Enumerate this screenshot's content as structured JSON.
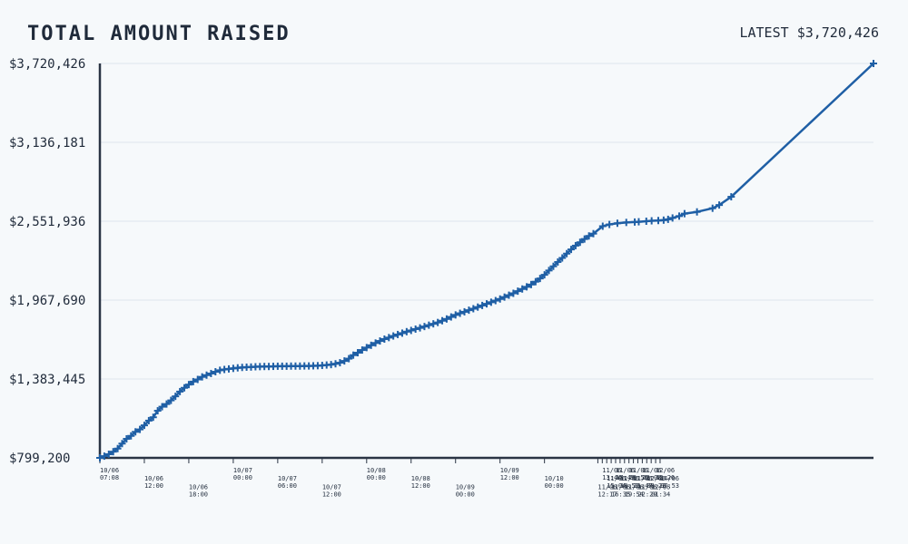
{
  "chart_data": {
    "type": "line",
    "title": "TOTAL AMOUNT RAISED",
    "latest_label": "LATEST",
    "latest_value": "$3,720,426",
    "y_ticks": [
      "$799,200",
      "$1,383,445",
      "$1,967,690",
      "$2,551,936",
      "$3,136,181",
      "$3,720,426"
    ],
    "ylim": [
      799200,
      3720426
    ],
    "grid": true,
    "x_labels": [
      {
        "date": "10/06",
        "time": "07:08",
        "i": 0
      },
      {
        "date": "10/06",
        "time": "12:00",
        "i": 10
      },
      {
        "date": "10/06",
        "time": "18:00",
        "i": 20
      },
      {
        "date": "10/07",
        "time": "00:00",
        "i": 30
      },
      {
        "date": "10/07",
        "time": "06:00",
        "i": 40
      },
      {
        "date": "10/07",
        "time": "12:00",
        "i": 50
      },
      {
        "date": "10/08",
        "time": "00:00",
        "i": 60
      },
      {
        "date": "10/08",
        "time": "12:00",
        "i": 70
      },
      {
        "date": "10/09",
        "time": "00:00",
        "i": 80
      },
      {
        "date": "10/09",
        "time": "12:00",
        "i": 90
      },
      {
        "date": "10/10",
        "time": "00:00",
        "i": 100
      },
      {
        "date": "11/06",
        "time": "12:17",
        "i": 112
      },
      {
        "date": "11/06",
        "time": "13:44",
        "i": 113
      },
      {
        "date": "11/06",
        "time": "15:04",
        "i": 114
      },
      {
        "date": "11/06",
        "time": "16:35",
        "i": 115
      },
      {
        "date": "11/06",
        "time": "17:49",
        "i": 116
      },
      {
        "date": "11/06",
        "time": "18:52",
        "i": 117
      },
      {
        "date": "11/06",
        "time": "19:54",
        "i": 118
      },
      {
        "date": "11/06",
        "time": "20:56",
        "i": 119
      },
      {
        "date": "11/06",
        "time": "21:47",
        "i": 120
      },
      {
        "date": "11/06",
        "time": "22:29",
        "i": 121
      },
      {
        "date": "11/06",
        "time": "23:08",
        "i": 122
      },
      {
        "date": "12/06",
        "time": "00:23",
        "i": 123
      },
      {
        "date": "12/06",
        "time": "01:34",
        "i": 124
      },
      {
        "date": "12/06",
        "time": "12:26",
        "i": 125
      },
      {
        "date": "14/06",
        "time": "07:53",
        "i": 126
      }
    ],
    "point_x": [
      0,
      1,
      2,
      3,
      4,
      5,
      6,
      7,
      8,
      9,
      10,
      11,
      12,
      13,
      14,
      15,
      16,
      17,
      18,
      19,
      20,
      21,
      22,
      23,
      24,
      25,
      26,
      27,
      28,
      29,
      30,
      31,
      32,
      33,
      34,
      35,
      36,
      37,
      38,
      39,
      40,
      41,
      42,
      43,
      44,
      45,
      46,
      47,
      48,
      49,
      50,
      51,
      52,
      53,
      54,
      55,
      56,
      57,
      58,
      59,
      60,
      61,
      62,
      63,
      64,
      65,
      66,
      67,
      68,
      69,
      70,
      71,
      72,
      73,
      74,
      75,
      76,
      77,
      78,
      79,
      80,
      81,
      82,
      83,
      84,
      85,
      86,
      87,
      88,
      89,
      90,
      91,
      92,
      93,
      94,
      95,
      96,
      97,
      98,
      99,
      100,
      101,
      102,
      103,
      104,
      105,
      106,
      107,
      108,
      109,
      110,
      111,
      113.1,
      114.6,
      116.4,
      118.4,
      120.3,
      121.2,
      122.9,
      124.1,
      125.6,
      126.8,
      127.8,
      128.8,
      130.3,
      131.5,
      134.3,
      137.8,
      139.3,
      142.0,
      174.0
    ],
    "point_y": [
      799200,
      812000,
      826000,
      845000,
      868000,
      905000,
      940000,
      962000,
      992000,
      1010000,
      1040000,
      1075000,
      1100000,
      1148000,
      1178000,
      1198000,
      1225000,
      1255000,
      1290000,
      1318000,
      1342000,
      1364000,
      1380000,
      1399000,
      1412000,
      1424000,
      1437000,
      1448000,
      1454000,
      1458000,
      1462000,
      1466000,
      1469000,
      1471000,
      1472000,
      1474000,
      1475000,
      1476000,
      1476000,
      1477000,
      1478000,
      1478000,
      1478000,
      1479000,
      1479000,
      1479000,
      1480000,
      1480000,
      1481000,
      1482000,
      1484000,
      1487000,
      1490000,
      1496000,
      1504000,
      1517000,
      1534000,
      1560000,
      1578000,
      1598000,
      1616000,
      1633000,
      1650000,
      1665000,
      1679000,
      1690000,
      1702000,
      1713000,
      1723000,
      1734000,
      1743000,
      1753000,
      1762000,
      1772000,
      1782000,
      1792000,
      1802000,
      1815000,
      1828000,
      1843000,
      1858000,
      1870000,
      1881000,
      1893000,
      1904000,
      1916000,
      1928000,
      1940000,
      1952000,
      1964000,
      1976000,
      1990000,
      2004000,
      2018000,
      2034000,
      2050000,
      2066000,
      2083000,
      2104000,
      2128000,
      2155000,
      2187000,
      2218000,
      2250000,
      2280000,
      2312000,
      2343000,
      2371000,
      2396000,
      2420000,
      2443000,
      2460000,
      2515000,
      2528000,
      2537000,
      2543000,
      2546000,
      2548000,
      2552000,
      2555000,
      2557000,
      2560000,
      2566000,
      2576000,
      2590000,
      2608000,
      2621000,
      2648000,
      2672000,
      2733000,
      3720426
    ]
  }
}
